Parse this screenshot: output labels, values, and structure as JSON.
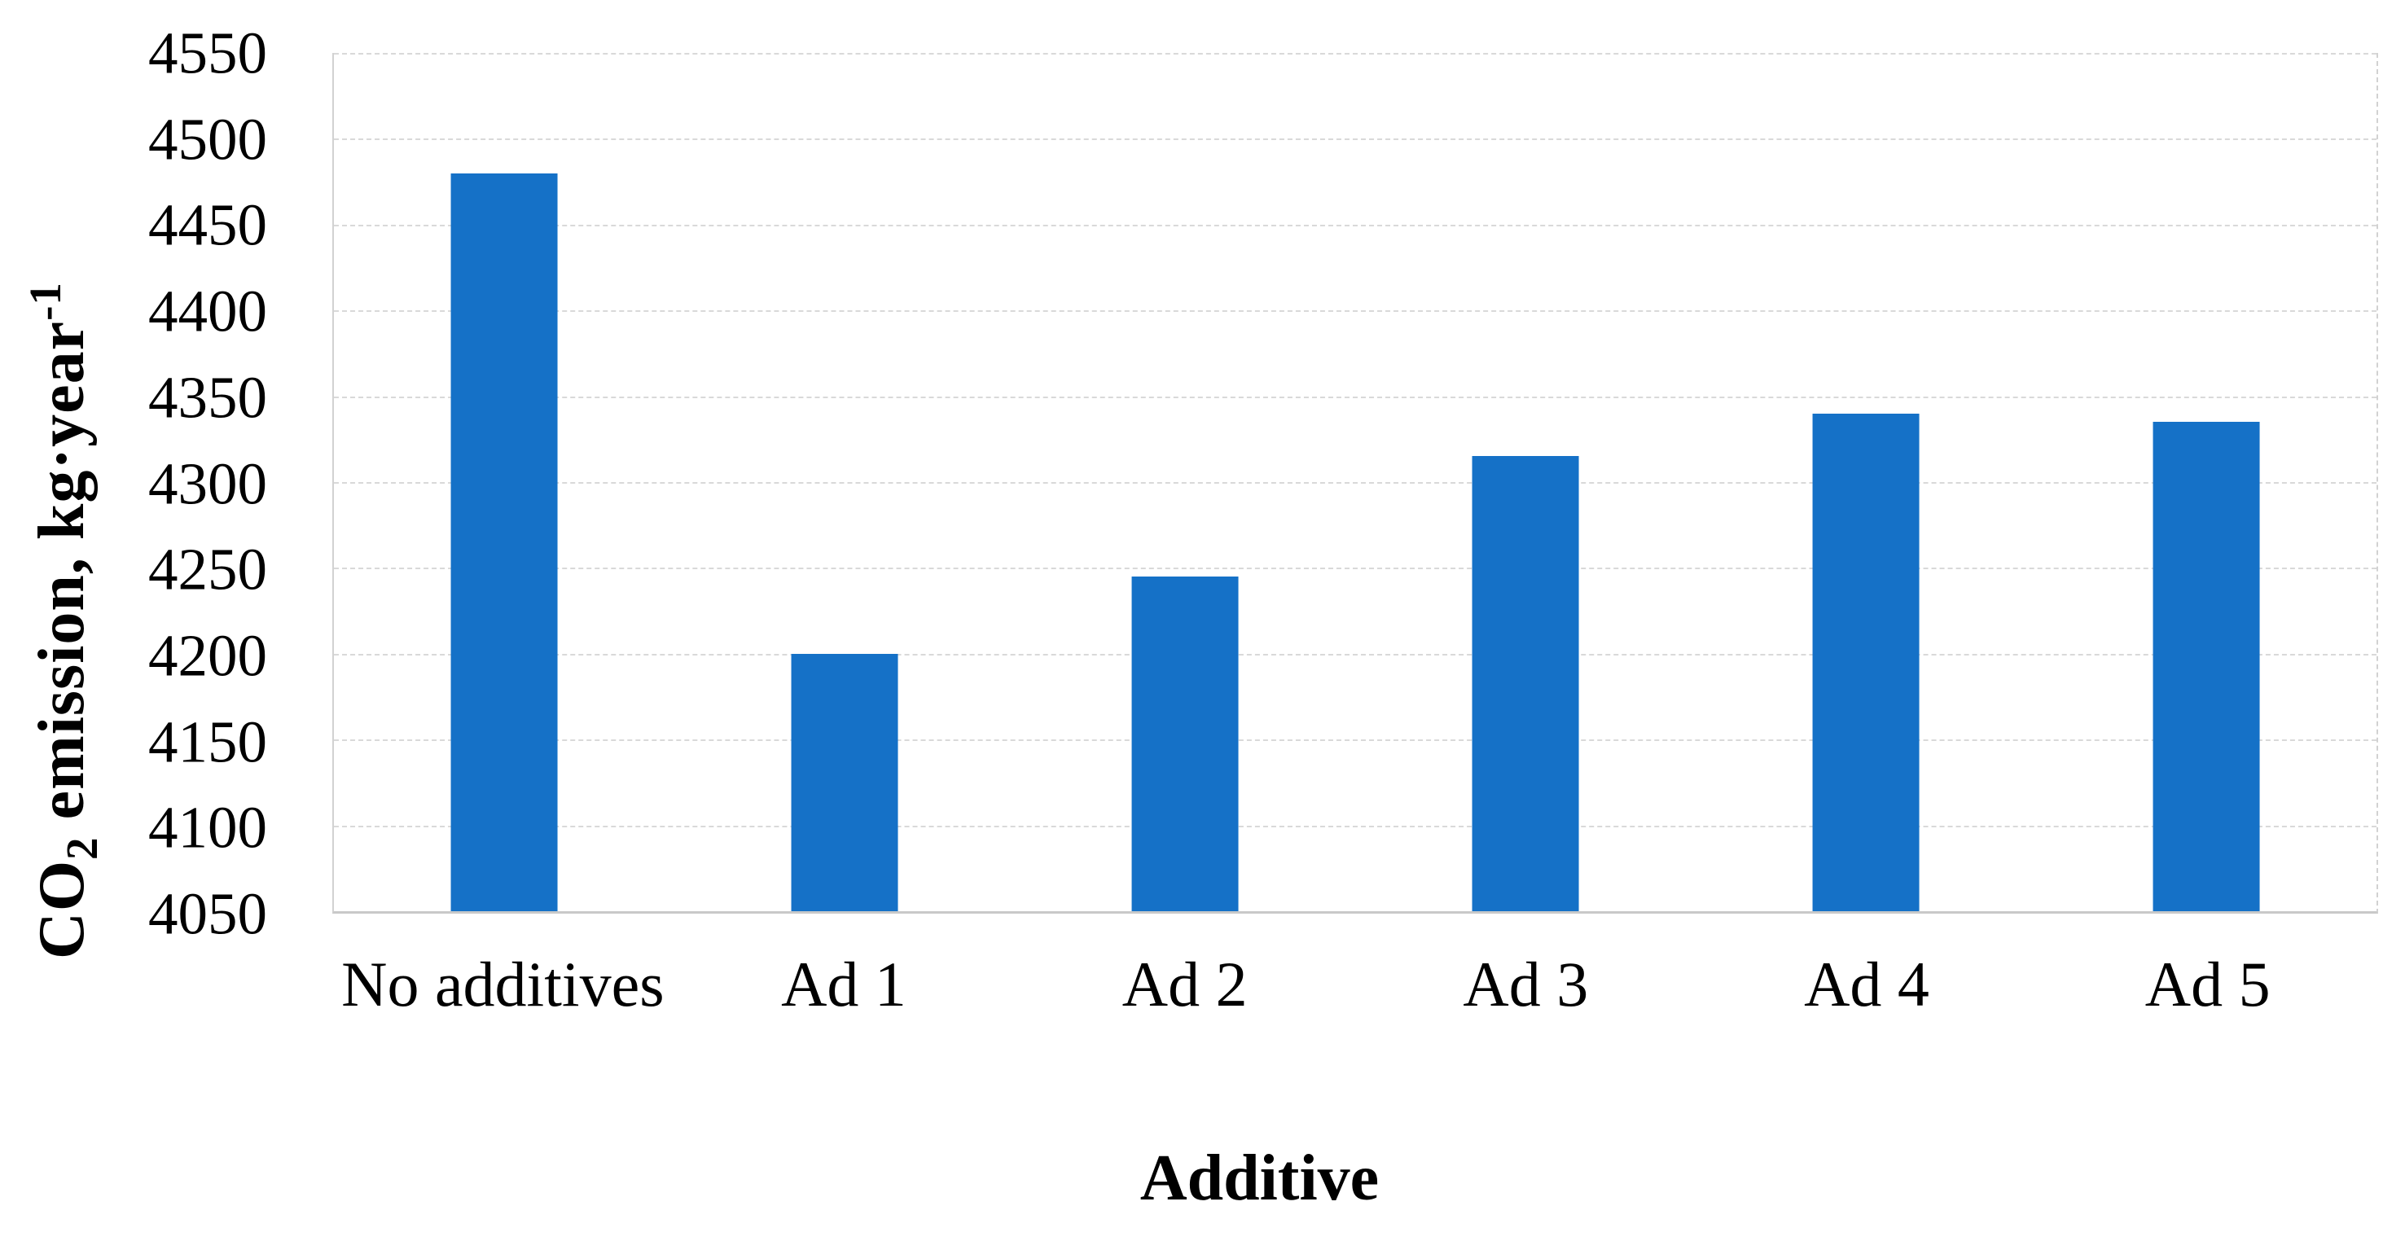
{
  "figure": {
    "background": "#ffffff",
    "text_color": "#000000"
  },
  "chart_data": {
    "type": "bar",
    "title": "",
    "categories": [
      "No additives",
      "Ad 1",
      "Ad 2",
      "Ad 3",
      "Ad 4",
      "Ad 5"
    ],
    "values": [
      4480,
      4200,
      4245,
      4315,
      4340,
      4335
    ],
    "series_color": "#1571C7",
    "xlabel": "Additive",
    "ylabel": "CO2 emission, kg·year-1",
    "ylabel_parts": {
      "pre": "CO",
      "sub": "2",
      "mid": " emission, kg·year",
      "sup": "-1"
    },
    "ylim": [
      4050,
      4550
    ],
    "ytick_step": 50,
    "yticks": [
      4550,
      4500,
      4450,
      4400,
      4350,
      4300,
      4250,
      4200,
      4150,
      4100,
      4050
    ],
    "grid": "horizontal-dashed",
    "gridline_color": "#d9d9d9",
    "axis_line_color": "#c9c9c9",
    "legend": "none"
  }
}
